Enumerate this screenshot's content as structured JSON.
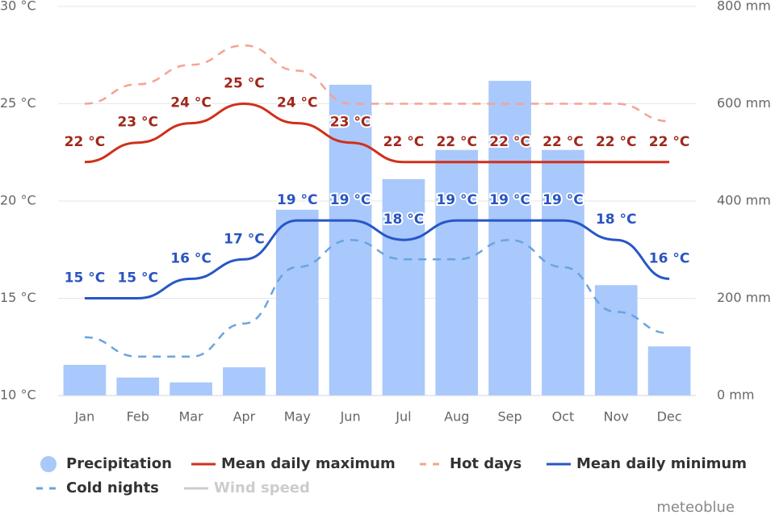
{
  "chart_data": {
    "type": "combo",
    "categories": [
      "Jan",
      "Feb",
      "Mar",
      "Apr",
      "May",
      "Jun",
      "Jul",
      "Aug",
      "Sep",
      "Oct",
      "Nov",
      "Dec"
    ],
    "ylim": [
      10,
      30
    ],
    "yticks": [
      {
        "value": 10,
        "label": "10 °C"
      },
      {
        "value": 15,
        "label": "15 °C"
      },
      {
        "value": 20,
        "label": "20 °C"
      },
      {
        "value": 25,
        "label": "25 °C"
      },
      {
        "value": 30,
        "label": "30 °C"
      }
    ],
    "y2lim": [
      0,
      800
    ],
    "y2ticks": [
      {
        "value": 0,
        "label": "0 mm"
      },
      {
        "value": 200,
        "label": "200 mm"
      },
      {
        "value": 400,
        "label": "400 mm"
      },
      {
        "value": 600,
        "label": "600 mm"
      },
      {
        "value": 800,
        "label": "800 mm"
      }
    ],
    "grid": true,
    "series": [
      {
        "name": "Precipitation",
        "type": "bar",
        "axis": "y2",
        "color": "#a9c8fb",
        "values": [
          63,
          37,
          27,
          58,
          382,
          639,
          445,
          505,
          647,
          505,
          227,
          101
        ]
      },
      {
        "name": "Mean daily maximum",
        "type": "line",
        "color": "#d0301b",
        "dash": false,
        "values": [
          22,
          23,
          24,
          25,
          24,
          23,
          22,
          22,
          22,
          22,
          22,
          22
        ],
        "value_labels": [
          "22 °C",
          "23 °C",
          "24 °C",
          "25 °C",
          "24 °C",
          "23 °C",
          "22 °C",
          "22 °C",
          "22 °C",
          "22 °C",
          "22 °C",
          "22 °C"
        ],
        "label_color": "#a0281a"
      },
      {
        "name": "Hot days",
        "type": "line",
        "color": "#f5a393",
        "dash": true,
        "values": [
          25,
          26,
          27,
          28,
          26.7,
          25,
          25,
          25,
          25,
          25,
          25,
          24.1
        ]
      },
      {
        "name": "Mean daily minimum",
        "type": "line",
        "color": "#2756c6",
        "dash": false,
        "values": [
          15,
          15,
          16,
          17,
          19,
          19,
          18,
          19,
          19,
          19,
          18,
          16
        ],
        "value_labels": [
          "15 °C",
          "15 °C",
          "16 °C",
          "17 °C",
          "19 °C",
          "19 °C",
          "18 °C",
          "19 °C",
          "19 °C",
          "19 °C",
          "18 °C",
          "16 °C"
        ],
        "label_color": "#2a55c0"
      },
      {
        "name": "Cold nights",
        "type": "line",
        "color": "#6aa4e0",
        "dash": true,
        "values": [
          13,
          12,
          12,
          13.7,
          16.6,
          18,
          17,
          17,
          18,
          16.6,
          14.3,
          13.2
        ]
      }
    ],
    "hidden_series": [
      {
        "name": "Wind speed",
        "color": "#cccccc"
      }
    ],
    "credit": "meteoblue"
  }
}
